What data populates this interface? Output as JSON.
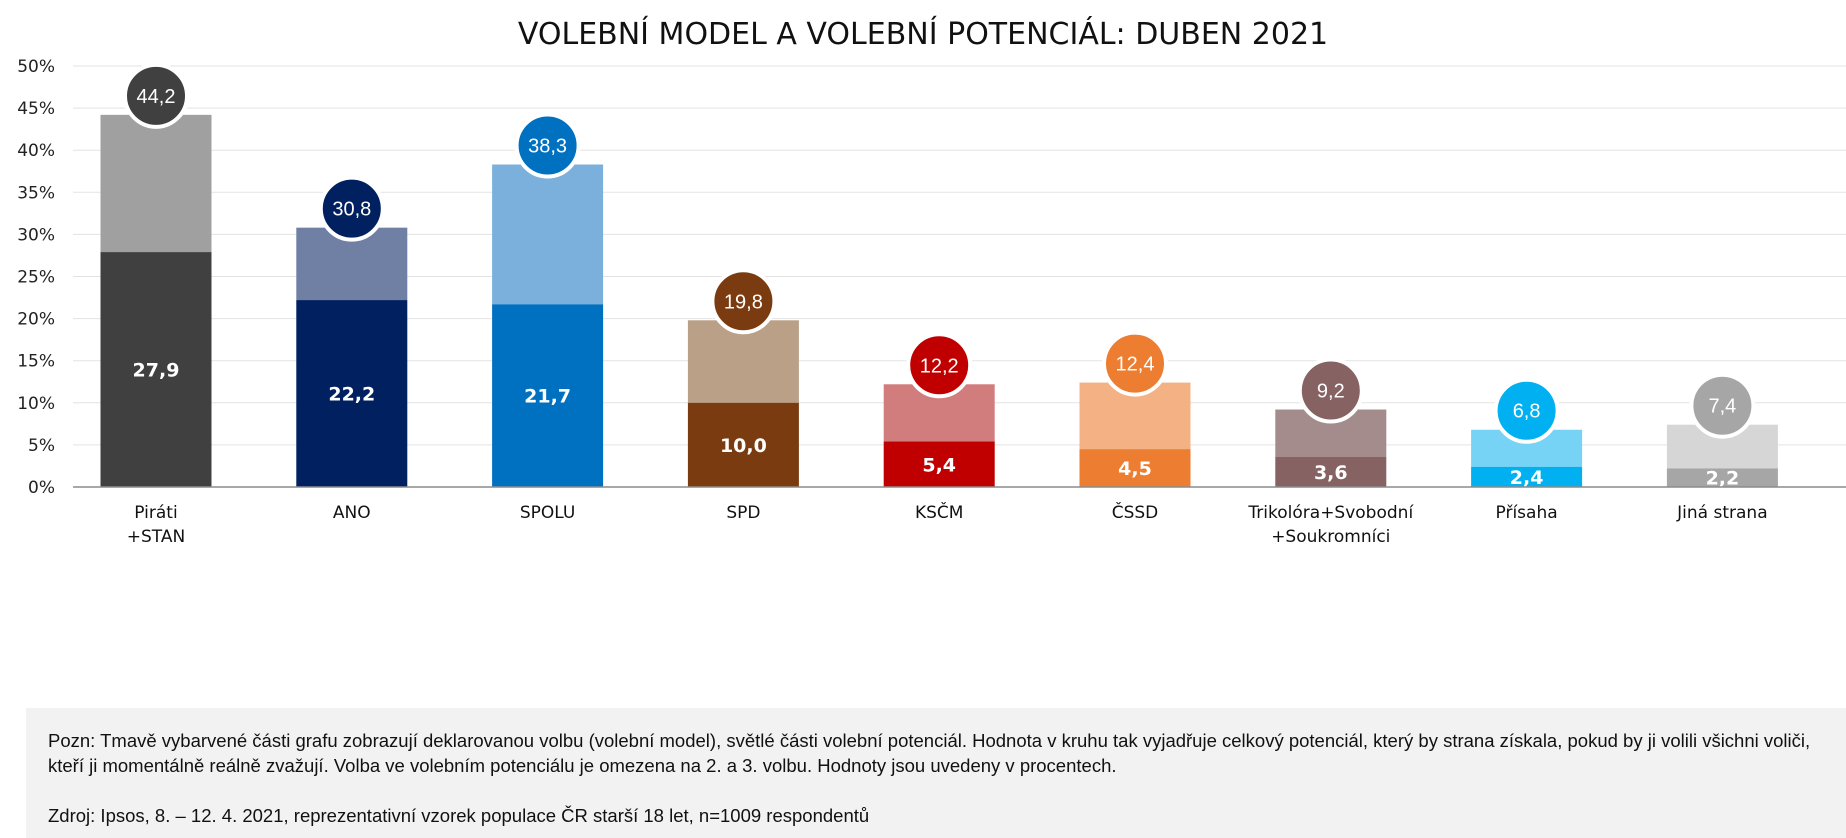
{
  "chart_data": {
    "type": "bar",
    "title": "VOLEBNÍ MODEL A VOLEBNÍ POTENCIÁL: DUBEN 2021",
    "categories": [
      [
        "Piráti",
        "+STAN"
      ],
      [
        "ANO"
      ],
      [
        "SPOLU"
      ],
      [
        "SPD"
      ],
      [
        "KSČM"
      ],
      [
        "ČSSD"
      ],
      [
        "Trikolóra+Svobodní",
        "+Soukromníci"
      ],
      [
        "Přísaha"
      ],
      [
        "Jiná strana"
      ]
    ],
    "model_values": [
      27.9,
      22.2,
      21.7,
      10.0,
      5.4,
      4.5,
      3.6,
      2.4,
      2.2
    ],
    "model_labels": [
      "27,9",
      "22,2",
      "21,7",
      "10,0",
      "5,4",
      "4,5",
      "3,6",
      "2,4",
      "2,2"
    ],
    "potential_values": [
      44.2,
      30.8,
      38.3,
      19.8,
      12.2,
      12.4,
      9.2,
      6.8,
      7.4
    ],
    "potential_labels": [
      "44,2",
      "30,8",
      "38,3",
      "19,8",
      "12,2",
      "12,4",
      "9,2",
      "6,8",
      "7,4"
    ],
    "dark_colors": [
      "#404040",
      "#002060",
      "#0070c0",
      "#7b3b10",
      "#c00000",
      "#ed7d31",
      "#866262",
      "#00b0f0",
      "#a6a6a6"
    ],
    "light_colors": [
      "#a0a0a0",
      "#7080a5",
      "#7ab0db",
      "#baa087",
      "#d27d7d",
      "#f4b183",
      "#a48c8c",
      "#76d3f6",
      "#d6d6d6"
    ],
    "bubble_colors": [
      "#404040",
      "#002060",
      "#0070c0",
      "#7b3b10",
      "#c00000",
      "#ed7d31",
      "#866262",
      "#00b0f0",
      "#a6a6a6"
    ],
    "ylim": [
      0,
      50
    ],
    "y_ticks": [
      "0%",
      "5%",
      "10%",
      "15%",
      "20%",
      "25%",
      "30%",
      "35%",
      "40%",
      "45%",
      "50%"
    ],
    "grid": true
  },
  "note": {
    "text": "Pozn: Tmavě vybarvené části grafu zobrazují deklarovanou volbu (volební model), světlé části volební potenciál. Hodnota v kruhu tak vyjadřuje celkový potenciál, který by strana získala, pokud by ji volili všichni voliči, kteří ji momentálně reálně zvažují. Volba ve volebním potenciálu je omezena na 2. a 3. volbu. Hodnoty jsou uvedeny v procentech.",
    "source": "Zdroj: Ipsos, 8. – 12. 4. 2021, reprezentativní vzorek populace ČR starší 18 let, n=1009 respondentů"
  }
}
